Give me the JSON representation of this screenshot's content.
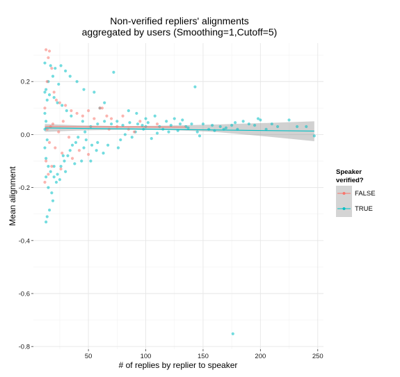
{
  "chart_data": {
    "type": "scatter",
    "title": [
      "Non-verified repliers' alignments",
      "aggregated by users (Smoothing=1,Cutoff=5)"
    ],
    "xlabel": "# of replies by replier to speaker",
    "ylabel": "Mean alignment",
    "xlim": [
      2,
      255
    ],
    "ylim": [
      -0.81,
      0.345
    ],
    "xticks": [
      50,
      100,
      150,
      200,
      250
    ],
    "yticks": [
      0.2,
      0.0,
      -0.2,
      -0.4,
      -0.6,
      -0.8
    ],
    "xtick_labels": [
      "50",
      "100",
      "150",
      "200",
      "250"
    ],
    "ytick_labels": [
      "0.2",
      "0.0",
      "-0.2",
      "-0.4",
      "-0.6",
      "-0.8"
    ],
    "grid": true,
    "legend": {
      "title": [
        "Speaker",
        "verified?"
      ],
      "position": "right",
      "entries": [
        "FALSE",
        "TRUE"
      ]
    },
    "series": [
      {
        "name": "FALSE",
        "color": "#F8766D",
        "points": [
          [
            13,
            0.32
          ],
          [
            16,
            0.315
          ],
          [
            15,
            0.29
          ],
          [
            18,
            0.25
          ],
          [
            14,
            0.2
          ],
          [
            20,
            0.16
          ],
          [
            22,
            0.13
          ],
          [
            25,
            0.12
          ],
          [
            12,
            0.1
          ],
          [
            30,
            0.11
          ],
          [
            35,
            0.09
          ],
          [
            60,
            0.1
          ],
          [
            62,
            0.1
          ],
          [
            50,
            0.09
          ],
          [
            40,
            0.08
          ],
          [
            45,
            0.07
          ],
          [
            55,
            0.06
          ],
          [
            28,
            0.05
          ],
          [
            19,
            0.04
          ],
          [
            17,
            0.03
          ],
          [
            14,
            0.02
          ],
          [
            24,
            0.01
          ],
          [
            33,
            -0.01
          ],
          [
            16,
            -0.03
          ],
          [
            21,
            -0.05
          ],
          [
            27,
            -0.07
          ],
          [
            50,
            -0.075
          ],
          [
            13,
            -0.1
          ],
          [
            18,
            -0.12
          ],
          [
            26,
            -0.13
          ],
          [
            15,
            -0.15
          ],
          [
            12,
            -0.18
          ],
          [
            36,
            -0.09
          ],
          [
            42,
            -0.06
          ],
          [
            70,
            0.06
          ],
          [
            80,
            0.07
          ],
          [
            95,
            0.05
          ],
          [
            110,
            0.04
          ],
          [
            68,
            0.02
          ],
          [
            75,
            0.03
          ],
          [
            85,
            0.02
          ],
          [
            90,
            0.01
          ],
          [
            66,
            0.07
          ]
        ],
        "trend": [
          [
            12,
            0.03
          ],
          [
            135,
            0.028
          ]
        ]
      },
      {
        "name": "TRUE",
        "color": "#00BFC4",
        "points": [
          [
            13,
            -0.33
          ],
          [
            14,
            -0.31
          ],
          [
            16,
            -0.285
          ],
          [
            19,
            -0.25
          ],
          [
            18,
            -0.22
          ],
          [
            15,
            -0.2
          ],
          [
            22,
            -0.18
          ],
          [
            25,
            -0.17
          ],
          [
            13,
            -0.16
          ],
          [
            30,
            -0.14
          ],
          [
            20,
            -0.12
          ],
          [
            38,
            -0.11
          ],
          [
            44,
            -0.1
          ],
          [
            52,
            -0.1
          ],
          [
            28,
            -0.08
          ],
          [
            34,
            -0.06
          ],
          [
            46,
            -0.05
          ],
          [
            57,
            -0.06
          ],
          [
            67,
            -0.04
          ],
          [
            12,
            0.27
          ],
          [
            17,
            0.26
          ],
          [
            21,
            0.25
          ],
          [
            26,
            0.26
          ],
          [
            30,
            0.24
          ],
          [
            19,
            0.22
          ],
          [
            34,
            0.22
          ],
          [
            15,
            0.2
          ],
          [
            40,
            0.2
          ],
          [
            24,
            0.19
          ],
          [
            46,
            0.17
          ],
          [
            55,
            0.16
          ],
          [
            13,
            0.17
          ],
          [
            72,
            0.235
          ],
          [
            143,
            0.18
          ],
          [
            60,
            0.1
          ],
          [
            64,
            0.12
          ],
          [
            85,
            0.09
          ],
          [
            92,
            0.08
          ],
          [
            100,
            0.06
          ],
          [
            108,
            0.07
          ],
          [
            118,
            0.05
          ],
          [
            125,
            0.06
          ],
          [
            132,
            0.055
          ],
          [
            140,
            0.04
          ],
          [
            150,
            0.04
          ],
          [
            158,
            0.035
          ],
          [
            165,
            0.03
          ],
          [
            170,
            0.025
          ],
          [
            178,
            0.045
          ],
          [
            185,
            0.05
          ],
          [
            190,
            0.04
          ],
          [
            198,
            0.06
          ],
          [
            200,
            0.055
          ],
          [
            210,
            0.04
          ],
          [
            215,
            0.03
          ],
          [
            225,
            0.055
          ],
          [
            232,
            0.03
          ],
          [
            240,
            0.03
          ],
          [
            247,
            -0.005
          ],
          [
            180,
            0.02
          ],
          [
            175,
            0.035
          ],
          [
            205,
            0.02
          ],
          [
            195,
            0.035
          ],
          [
            155,
            0.02
          ],
          [
            145,
            0.01
          ],
          [
            147,
            -0.005
          ],
          [
            160,
            0.015
          ],
          [
            168,
            0.02
          ],
          [
            120,
            0.01
          ],
          [
            110,
            0.005
          ],
          [
            98,
            0.02
          ],
          [
            88,
            -0.01
          ],
          [
            78,
            -0.02
          ],
          [
            82,
            0.0
          ],
          [
            105,
            -0.015
          ],
          [
            115,
            0.02
          ],
          [
            76,
            -0.05
          ],
          [
            91,
            0.01
          ],
          [
            100,
            0.03
          ],
          [
            128,
            0.015
          ],
          [
            135,
            0.03
          ],
          [
            63,
            -0.07
          ],
          [
            58,
            -0.03
          ],
          [
            53,
            -0.04
          ],
          [
            48,
            -0.02
          ],
          [
            39,
            -0.03
          ],
          [
            45,
            0.05
          ],
          [
            35,
            0.07
          ],
          [
            31,
            0.09
          ],
          [
            27,
            0.11
          ],
          [
            23,
            0.12
          ],
          [
            20,
            0.14
          ],
          [
            16,
            0.15
          ],
          [
            14,
            0.13
          ],
          [
            12,
            0.16
          ],
          [
            12,
            0.08
          ],
          [
            13,
            0.05
          ],
          [
            12,
            0.02
          ],
          [
            14,
            -0.02
          ],
          [
            12,
            -0.05
          ],
          [
            13,
            -0.09
          ],
          [
            15,
            -0.12
          ],
          [
            17,
            -0.14
          ],
          [
            20,
            -0.16
          ],
          [
            23,
            -0.15
          ],
          [
            26,
            -0.12
          ],
          [
            29,
            -0.1
          ],
          [
            32,
            -0.08
          ],
          [
            36,
            -0.04
          ],
          [
            41,
            -0.01
          ],
          [
            47,
            0.01
          ],
          [
            52,
            0.03
          ],
          [
            58,
            0.04
          ],
          [
            64,
            0.05
          ],
          [
            70,
            0.04
          ],
          [
            75,
            0.05
          ],
          [
            80,
            0.035
          ],
          [
            86,
            0.045
          ],
          [
            93,
            0.04
          ],
          [
            97,
            0.035
          ],
          [
            102,
            0.045
          ],
          [
            112,
            0.03
          ],
          [
            122,
            0.035
          ],
          [
            130,
            0.04
          ],
          [
            137,
            0.025
          ],
          [
            176,
            -0.752
          ]
        ],
        "trend": [
          [
            12,
            0.025
          ],
          [
            247,
            0.013
          ]
        ],
        "confidence_band": {
          "x": [
            12,
            40,
            80,
            120,
            160,
            200,
            247
          ],
          "lower": [
            0.01,
            0.015,
            0.018,
            0.017,
            0.01,
            -0.005,
            -0.025
          ],
          "upper": [
            0.04,
            0.035,
            0.032,
            0.034,
            0.038,
            0.043,
            0.05
          ]
        }
      }
    ]
  }
}
